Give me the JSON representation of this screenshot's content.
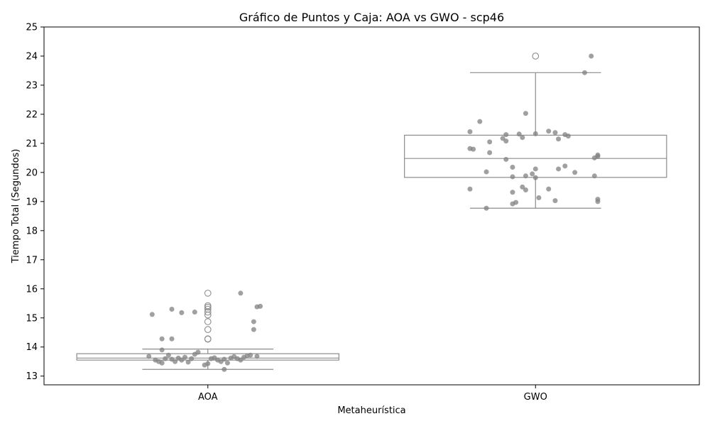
{
  "chart_data": {
    "type": "box",
    "title": "Gráfico de Puntos y Caja: AOA vs GWO - scp46",
    "xlabel": "Metaheurística",
    "ylabel": "Tiempo Total (Segundos)",
    "ylim": [
      12.7,
      25.0
    ],
    "yticks": [
      13,
      14,
      15,
      16,
      17,
      18,
      19,
      20,
      21,
      22,
      23,
      24,
      25
    ],
    "categories": [
      "AOA",
      "GWO"
    ],
    "grid": false,
    "colors": {
      "box_edge": "#8c8c8c",
      "point": "#808080",
      "outlier": "#8c8c8c"
    },
    "boxes": [
      {
        "category": "AOA",
        "whisker_low": 13.23,
        "q1": 13.55,
        "median": 13.62,
        "q3": 13.77,
        "whisker_high": 13.93,
        "outliers": [
          14.27,
          14.28,
          14.6,
          14.87,
          15.1,
          15.2,
          15.3,
          15.37,
          15.42,
          15.85
        ]
      },
      {
        "category": "GWO",
        "whisker_low": 18.77,
        "q1": 19.83,
        "median": 20.48,
        "q3": 21.28,
        "whisker_high": 23.43,
        "outliers": [
          24.0
        ]
      }
    ],
    "points": [
      {
        "category": "AOA",
        "jitter": -0.18,
        "y": 13.68
      },
      {
        "category": "AOA",
        "jitter": -0.16,
        "y": 13.55
      },
      {
        "category": "AOA",
        "jitter": -0.15,
        "y": 13.5
      },
      {
        "category": "AOA",
        "jitter": -0.14,
        "y": 13.45
      },
      {
        "category": "AOA",
        "jitter": -0.13,
        "y": 13.6
      },
      {
        "category": "AOA",
        "jitter": -0.12,
        "y": 13.72
      },
      {
        "category": "AOA",
        "jitter": -0.11,
        "y": 13.58
      },
      {
        "category": "AOA",
        "jitter": -0.1,
        "y": 13.5
      },
      {
        "category": "AOA",
        "jitter": -0.09,
        "y": 13.62
      },
      {
        "category": "AOA",
        "jitter": -0.08,
        "y": 13.55
      },
      {
        "category": "AOA",
        "jitter": -0.07,
        "y": 13.65
      },
      {
        "category": "AOA",
        "jitter": -0.06,
        "y": 13.48
      },
      {
        "category": "AOA",
        "jitter": -0.05,
        "y": 13.6
      },
      {
        "category": "AOA",
        "jitter": -0.04,
        "y": 13.75
      },
      {
        "category": "AOA",
        "jitter": -0.03,
        "y": 13.82
      },
      {
        "category": "AOA",
        "jitter": -0.01,
        "y": 13.38
      },
      {
        "category": "AOA",
        "jitter": 0.0,
        "y": 13.43
      },
      {
        "category": "AOA",
        "jitter": 0.01,
        "y": 13.6
      },
      {
        "category": "AOA",
        "jitter": 0.02,
        "y": 13.63
      },
      {
        "category": "AOA",
        "jitter": 0.03,
        "y": 13.55
      },
      {
        "category": "AOA",
        "jitter": 0.04,
        "y": 13.5
      },
      {
        "category": "AOA",
        "jitter": 0.05,
        "y": 13.58
      },
      {
        "category": "AOA",
        "jitter": 0.06,
        "y": 13.45
      },
      {
        "category": "AOA",
        "jitter": 0.07,
        "y": 13.62
      },
      {
        "category": "AOA",
        "jitter": 0.08,
        "y": 13.67
      },
      {
        "category": "AOA",
        "jitter": 0.05,
        "y": 13.23
      },
      {
        "category": "AOA",
        "jitter": 0.1,
        "y": 13.55
      },
      {
        "category": "AOA",
        "jitter": 0.11,
        "y": 13.65
      },
      {
        "category": "AOA",
        "jitter": 0.12,
        "y": 13.7
      },
      {
        "category": "AOA",
        "jitter": 0.13,
        "y": 13.72
      },
      {
        "category": "AOA",
        "jitter": 0.15,
        "y": 13.68
      },
      {
        "category": "AOA",
        "jitter": 0.09,
        "y": 13.6
      },
      {
        "category": "AOA",
        "jitter": -0.14,
        "y": 13.9
      },
      {
        "category": "AOA",
        "jitter": -0.14,
        "y": 14.28
      },
      {
        "category": "AOA",
        "jitter": -0.11,
        "y": 14.28
      },
      {
        "category": "AOA",
        "jitter": 0.14,
        "y": 14.6
      },
      {
        "category": "AOA",
        "jitter": 0.14,
        "y": 14.87
      },
      {
        "category": "AOA",
        "jitter": -0.17,
        "y": 15.12
      },
      {
        "category": "AOA",
        "jitter": -0.08,
        "y": 15.18
      },
      {
        "category": "AOA",
        "jitter": -0.04,
        "y": 15.2
      },
      {
        "category": "AOA",
        "jitter": -0.11,
        "y": 15.3
      },
      {
        "category": "AOA",
        "jitter": 0.15,
        "y": 15.38
      },
      {
        "category": "AOA",
        "jitter": 0.16,
        "y": 15.4
      },
      {
        "category": "AOA",
        "jitter": 0.1,
        "y": 15.85
      },
      {
        "category": "GWO",
        "jitter": 0.17,
        "y": 24.0
      },
      {
        "category": "GWO",
        "jitter": 0.15,
        "y": 23.43
      },
      {
        "category": "GWO",
        "jitter": -0.03,
        "y": 22.03
      },
      {
        "category": "GWO",
        "jitter": -0.17,
        "y": 21.75
      },
      {
        "category": "GWO",
        "jitter": -0.2,
        "y": 21.4
      },
      {
        "category": "GWO",
        "jitter": -0.09,
        "y": 21.3
      },
      {
        "category": "GWO",
        "jitter": -0.05,
        "y": 21.32
      },
      {
        "category": "GWO",
        "jitter": 0.0,
        "y": 21.33
      },
      {
        "category": "GWO",
        "jitter": 0.04,
        "y": 21.42
      },
      {
        "category": "GWO",
        "jitter": 0.06,
        "y": 21.37
      },
      {
        "category": "GWO",
        "jitter": 0.09,
        "y": 21.3
      },
      {
        "category": "GWO",
        "jitter": -0.1,
        "y": 21.17
      },
      {
        "category": "GWO",
        "jitter": -0.04,
        "y": 21.2
      },
      {
        "category": "GWO",
        "jitter": 0.07,
        "y": 21.15
      },
      {
        "category": "GWO",
        "jitter": 0.1,
        "y": 21.25
      },
      {
        "category": "GWO",
        "jitter": -0.14,
        "y": 21.05
      },
      {
        "category": "GWO",
        "jitter": -0.09,
        "y": 21.08
      },
      {
        "category": "GWO",
        "jitter": -0.19,
        "y": 20.8
      },
      {
        "category": "GWO",
        "jitter": -0.2,
        "y": 20.82
      },
      {
        "category": "GWO",
        "jitter": -0.14,
        "y": 20.68
      },
      {
        "category": "GWO",
        "jitter": -0.09,
        "y": 20.45
      },
      {
        "category": "GWO",
        "jitter": 0.19,
        "y": 20.55
      },
      {
        "category": "GWO",
        "jitter": 0.18,
        "y": 20.5
      },
      {
        "category": "GWO",
        "jitter": 0.19,
        "y": 20.6
      },
      {
        "category": "GWO",
        "jitter": -0.07,
        "y": 20.18
      },
      {
        "category": "GWO",
        "jitter": 0.0,
        "y": 20.12
      },
      {
        "category": "GWO",
        "jitter": 0.09,
        "y": 20.22
      },
      {
        "category": "GWO",
        "jitter": 0.07,
        "y": 20.12
      },
      {
        "category": "GWO",
        "jitter": -0.15,
        "y": 20.02
      },
      {
        "category": "GWO",
        "jitter": 0.12,
        "y": 20.0
      },
      {
        "category": "GWO",
        "jitter": -0.01,
        "y": 19.95
      },
      {
        "category": "GWO",
        "jitter": -0.03,
        "y": 19.88
      },
      {
        "category": "GWO",
        "jitter": -0.07,
        "y": 19.85
      },
      {
        "category": "GWO",
        "jitter": 0.0,
        "y": 19.82
      },
      {
        "category": "GWO",
        "jitter": 0.18,
        "y": 19.88
      },
      {
        "category": "GWO",
        "jitter": -0.2,
        "y": 19.43
      },
      {
        "category": "GWO",
        "jitter": -0.04,
        "y": 19.5
      },
      {
        "category": "GWO",
        "jitter": -0.03,
        "y": 19.4
      },
      {
        "category": "GWO",
        "jitter": 0.04,
        "y": 19.43
      },
      {
        "category": "GWO",
        "jitter": -0.07,
        "y": 19.32
      },
      {
        "category": "GWO",
        "jitter": 0.01,
        "y": 19.13
      },
      {
        "category": "GWO",
        "jitter": 0.06,
        "y": 19.03
      },
      {
        "category": "GWO",
        "jitter": 0.19,
        "y": 19.08
      },
      {
        "category": "GWO",
        "jitter": 0.19,
        "y": 19.0
      },
      {
        "category": "GWO",
        "jitter": -0.06,
        "y": 18.97
      },
      {
        "category": "GWO",
        "jitter": -0.07,
        "y": 18.92
      },
      {
        "category": "GWO",
        "jitter": -0.15,
        "y": 18.77
      }
    ]
  }
}
